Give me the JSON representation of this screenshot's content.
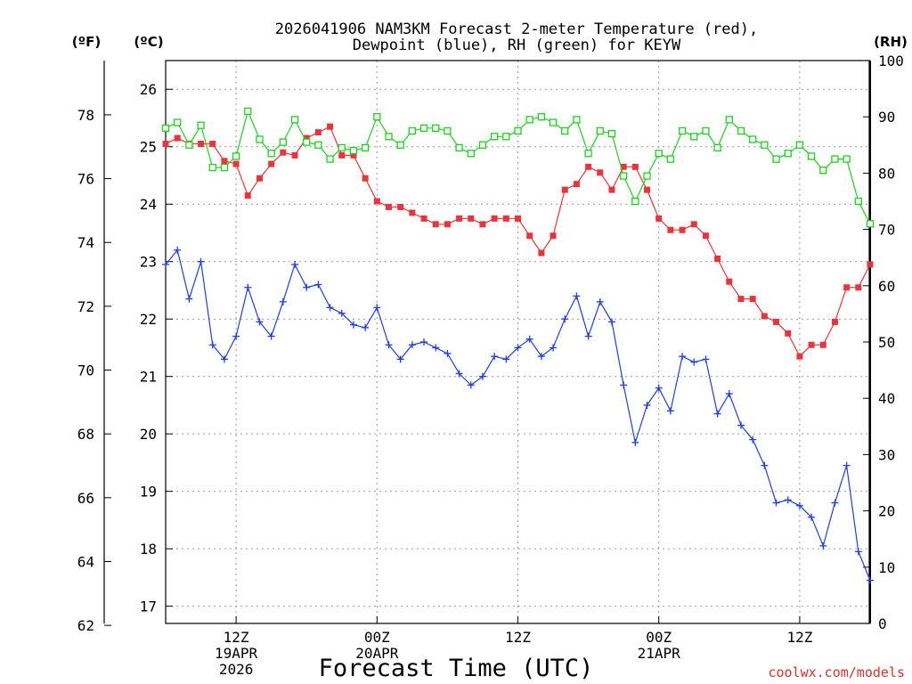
{
  "title_line1": "2026041906 NAM3KM Forecast 2-meter Temperature (red),",
  "title_line2": "Dewpoint (blue), RH (green) for KEYW",
  "unit_f": "(ºF)",
  "unit_c": "(ºC)",
  "unit_rh": "(RH)",
  "xlabel": "Forecast Time (UTC)",
  "credit": "coolwx.com/models",
  "colors": {
    "temperature": "#e8343a",
    "dewpoint": "#1f3fe0",
    "rh": "#1ed11e",
    "credit": "#d6322e",
    "grid": "#9a9a9a"
  },
  "chart_data": {
    "type": "line",
    "title": "2026041906 NAM3KM Forecast 2-meter Temperature (red), Dewpoint (blue), RH (green) for KEYW",
    "xlabel": "Forecast Time (UTC)",
    "x_unit": "forecast hour from 2026-04-19 06Z",
    "x": [
      0,
      1,
      2,
      3,
      4,
      5,
      6,
      7,
      8,
      9,
      10,
      11,
      12,
      13,
      14,
      15,
      16,
      17,
      18,
      19,
      20,
      21,
      22,
      23,
      24,
      25,
      26,
      27,
      28,
      29,
      30,
      31,
      32,
      33,
      34,
      35,
      36,
      37,
      38,
      39,
      40,
      41,
      42,
      43,
      44,
      45,
      46,
      47,
      48,
      49,
      50,
      51,
      52,
      53,
      54,
      55,
      56,
      57,
      58,
      59,
      60
    ],
    "xlim": [
      0,
      60
    ],
    "x_ticks": [
      {
        "x": 6,
        "lines": [
          "12Z",
          "19APR",
          "2026"
        ]
      },
      {
        "x": 18,
        "lines": [
          "00Z",
          "20APR"
        ]
      },
      {
        "x": 30,
        "lines": [
          "12Z"
        ]
      },
      {
        "x": 42,
        "lines": [
          "00Z",
          "21APR"
        ]
      },
      {
        "x": 54,
        "lines": [
          "12Z"
        ]
      }
    ],
    "y_left_c": {
      "label": "(ºC)",
      "lim": [
        16.7,
        26.5
      ],
      "ticks": [
        17,
        18,
        19,
        20,
        21,
        22,
        23,
        24,
        25,
        26
      ]
    },
    "y_left_f": {
      "label": "(ºF)",
      "lim": [
        62.06,
        79.7
      ],
      "ticks": [
        62,
        64,
        66,
        68,
        70,
        72,
        74,
        76,
        78
      ]
    },
    "y_right": {
      "label": "(RH)",
      "lim": [
        0,
        100
      ],
      "ticks": [
        0,
        10,
        20,
        30,
        40,
        50,
        60,
        70,
        80,
        90,
        100
      ]
    },
    "grid": true,
    "series": [
      {
        "name": "Temperature",
        "color": "#e8343a",
        "marker": "filled-square",
        "axis": "celsius",
        "values": [
          25.05,
          25.15,
          25.05,
          25.05,
          25.05,
          24.75,
          24.7,
          24.15,
          24.45,
          24.7,
          24.9,
          24.85,
          25.15,
          25.25,
          25.35,
          24.85,
          24.85,
          24.45,
          24.05,
          23.95,
          23.95,
          23.85,
          23.75,
          23.65,
          23.65,
          23.75,
          23.75,
          23.65,
          23.75,
          23.75,
          23.75,
          23.45,
          23.15,
          23.45,
          24.25,
          24.35,
          24.65,
          24.55,
          24.25,
          24.65,
          24.65,
          24.25,
          23.75,
          23.55,
          23.55,
          23.65,
          23.45,
          23.05,
          22.65,
          22.35,
          22.35,
          22.05,
          21.95,
          21.75,
          21.35,
          21.55,
          21.55,
          21.95,
          22.55,
          22.55,
          22.95
        ]
      },
      {
        "name": "Dewpoint",
        "color": "#1f3fe0",
        "marker": "plus",
        "axis": "celsius",
        "values": [
          22.95,
          23.2,
          22.35,
          23.0,
          21.55,
          21.3,
          21.7,
          22.55,
          21.95,
          21.7,
          22.3,
          22.95,
          22.55,
          22.6,
          22.2,
          22.1,
          21.9,
          21.85,
          22.2,
          21.55,
          21.3,
          21.55,
          21.6,
          21.5,
          21.4,
          21.05,
          20.85,
          21.0,
          21.35,
          21.3,
          21.5,
          21.65,
          21.35,
          21.5,
          22.0,
          22.4,
          21.7,
          22.3,
          21.95,
          20.85,
          19.85,
          20.5,
          20.8,
          20.4,
          21.35,
          21.25,
          21.3,
          20.35,
          20.7,
          20.15,
          19.9,
          19.45,
          18.8,
          18.85,
          18.75,
          18.55,
          18.05,
          18.8,
          19.45,
          17.95,
          17.45
        ]
      },
      {
        "name": "RH",
        "color": "#1ed11e",
        "marker": "open-square",
        "axis": "rh",
        "values": [
          88,
          89,
          85,
          88.5,
          81,
          81,
          83,
          91,
          86,
          83.5,
          85.5,
          89.5,
          85.5,
          85,
          82.5,
          84.5,
          84,
          84.5,
          90,
          86.5,
          85,
          87.5,
          88,
          88,
          87.5,
          84.5,
          83.5,
          85,
          86.5,
          86.5,
          87.5,
          89.5,
          90,
          89,
          87.5,
          89.5,
          83.5,
          87.5,
          87,
          79.5,
          75,
          79.5,
          83.5,
          82.5,
          87.5,
          86.5,
          87.5,
          84.5,
          89.5,
          87.5,
          86,
          85,
          82.5,
          83.5,
          85,
          83,
          80.5,
          82.5,
          82.5,
          75,
          71
        ]
      }
    ]
  }
}
